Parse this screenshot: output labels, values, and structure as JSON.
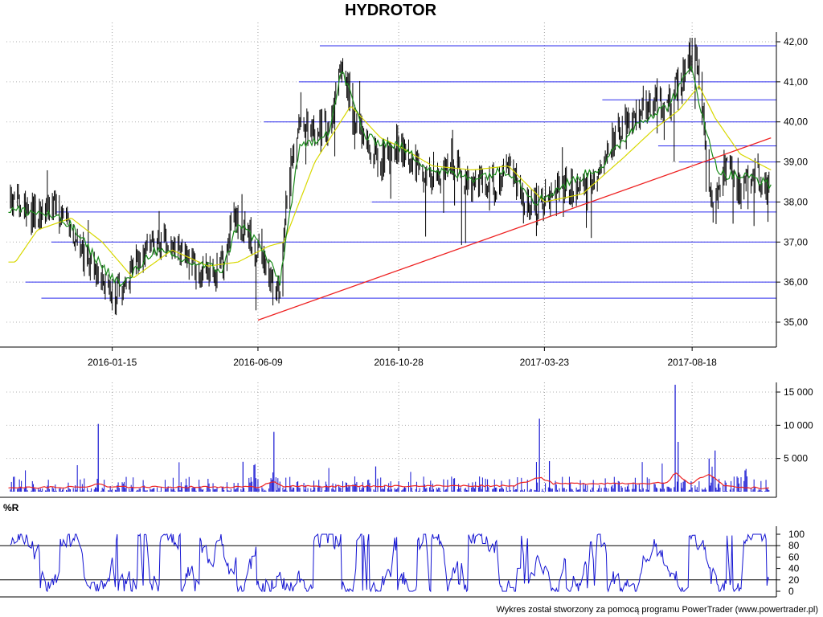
{
  "title": "HYDROTOR",
  "footer": "Wykres został stworzony za pomocą programu PowerTrader (www.powertrader.pl)",
  "colors": {
    "price_bars": "#000000",
    "fast_ma": "#1a8a1a",
    "slow_ma": "#d8d800",
    "levels": "#2a2aee",
    "trendline": "#ee2222",
    "volume_bars": "#1414d2",
    "volume_ma": "#ee2222",
    "williams_r": "#1414d2"
  },
  "chart_data": [
    {
      "type": "candlestick",
      "panel": "price",
      "title": "HYDROTOR",
      "x_ticks": [
        "2016-01-15",
        "2016-06-09",
        "2016-10-28",
        "2017-03-23",
        "2017-08-18"
      ],
      "y_ticks": [
        "35,00",
        "36,00",
        "37,00",
        "38,00",
        "39,00",
        "40,00",
        "41,00",
        "42,00"
      ],
      "ylim": [
        34.5,
        42.2
      ],
      "grid": true,
      "close_path": [
        [
          "2015-10-10",
          38.0
        ],
        [
          "2015-10-22",
          37.7
        ],
        [
          "2015-11-05",
          37.6
        ],
        [
          "2015-11-20",
          37.9
        ],
        [
          "2015-12-05",
          37.3
        ],
        [
          "2015-12-20",
          36.5
        ],
        [
          "2016-01-05",
          36.2
        ],
        [
          "2016-01-15",
          35.7
        ],
        [
          "2016-01-25",
          35.9
        ],
        [
          "2016-02-10",
          36.6
        ],
        [
          "2016-02-25",
          36.9
        ],
        [
          "2016-03-15",
          36.9
        ],
        [
          "2016-04-01",
          36.5
        ],
        [
          "2016-04-20",
          36.2
        ],
        [
          "2016-05-05",
          36.4
        ],
        [
          "2016-05-15",
          37.7
        ],
        [
          "2016-05-28",
          37.2
        ],
        [
          "2016-06-09",
          36.9
        ],
        [
          "2016-06-20",
          36.1
        ],
        [
          "2016-07-01",
          35.9
        ],
        [
          "2016-07-10",
          38.6
        ],
        [
          "2016-07-20",
          39.8
        ],
        [
          "2016-08-05",
          39.9
        ],
        [
          "2016-08-20",
          39.7
        ],
        [
          "2016-09-01",
          41.6
        ],
        [
          "2016-09-12",
          40.2
        ],
        [
          "2016-09-25",
          39.4
        ],
        [
          "2016-10-10",
          39.0
        ],
        [
          "2016-10-28",
          39.5
        ],
        [
          "2016-11-15",
          38.9
        ],
        [
          "2016-12-01",
          38.7
        ],
        [
          "2016-12-20",
          38.9
        ],
        [
          "2017-01-10",
          38.5
        ],
        [
          "2017-02-01",
          38.4
        ],
        [
          "2017-02-15",
          38.9
        ],
        [
          "2017-03-01",
          38.0
        ],
        [
          "2017-03-15",
          37.9
        ],
        [
          "2017-03-23",
          38.1
        ],
        [
          "2017-04-10",
          38.6
        ],
        [
          "2017-04-30",
          38.2
        ],
        [
          "2017-05-20",
          39.1
        ],
        [
          "2017-06-10",
          39.9
        ],
        [
          "2017-06-25",
          40.2
        ],
        [
          "2017-07-10",
          40.6
        ],
        [
          "2017-07-25",
          40.5
        ],
        [
          "2017-08-05",
          40.9
        ],
        [
          "2017-08-18",
          41.7
        ],
        [
          "2017-08-25",
          41.2
        ],
        [
          "2017-09-01",
          39.2
        ],
        [
          "2017-09-08",
          37.9
        ],
        [
          "2017-09-20",
          38.9
        ],
        [
          "2017-10-05",
          38.3
        ],
        [
          "2017-10-20",
          38.7
        ],
        [
          "2017-11-05",
          38.3
        ]
      ],
      "fast_ma_path": [
        [
          "2015-10-10",
          37.8
        ],
        [
          "2015-11-10",
          37.7
        ],
        [
          "2015-12-05",
          37.4
        ],
        [
          "2016-01-05",
          36.4
        ],
        [
          "2016-01-25",
          35.9
        ],
        [
          "2016-02-25",
          36.8
        ],
        [
          "2016-04-01",
          36.5
        ],
        [
          "2016-05-05",
          36.3
        ],
        [
          "2016-05-20",
          37.5
        ],
        [
          "2016-06-09",
          37.0
        ],
        [
          "2016-07-01",
          36.0
        ],
        [
          "2016-07-20",
          39.3
        ],
        [
          "2016-08-20",
          39.8
        ],
        [
          "2016-09-01",
          41.3
        ],
        [
          "2016-09-25",
          39.6
        ],
        [
          "2016-10-28",
          39.4
        ],
        [
          "2016-12-01",
          38.8
        ],
        [
          "2017-01-10",
          38.6
        ],
        [
          "2017-02-15",
          38.8
        ],
        [
          "2017-03-15",
          38.0
        ],
        [
          "2017-04-10",
          38.4
        ],
        [
          "2017-05-20",
          38.9
        ],
        [
          "2017-06-25",
          40.0
        ],
        [
          "2017-07-25",
          40.4
        ],
        [
          "2017-08-18",
          41.4
        ],
        [
          "2017-09-01",
          39.7
        ],
        [
          "2017-09-15",
          38.7
        ],
        [
          "2017-10-20",
          38.6
        ],
        [
          "2017-11-05",
          38.4
        ]
      ],
      "slow_ma_path": [
        [
          "2015-10-10",
          36.5
        ],
        [
          "2015-11-01",
          37.3
        ],
        [
          "2015-12-05",
          37.6
        ],
        [
          "2016-01-05",
          37.0
        ],
        [
          "2016-02-05",
          36.1
        ],
        [
          "2016-03-15",
          36.8
        ],
        [
          "2016-04-20",
          36.4
        ],
        [
          "2016-05-20",
          36.5
        ],
        [
          "2016-06-20",
          36.9
        ],
        [
          "2016-07-05",
          37.0
        ],
        [
          "2016-08-05",
          39.0
        ],
        [
          "2016-09-10",
          40.4
        ],
        [
          "2016-10-10",
          39.6
        ],
        [
          "2016-10-28",
          39.4
        ],
        [
          "2016-12-01",
          38.9
        ],
        [
          "2017-01-10",
          38.8
        ],
        [
          "2017-02-15",
          38.9
        ],
        [
          "2017-03-23",
          38.0
        ],
        [
          "2017-04-30",
          38.2
        ],
        [
          "2017-06-10",
          39.1
        ],
        [
          "2017-07-10",
          39.8
        ],
        [
          "2017-08-05",
          40.3
        ],
        [
          "2017-08-25",
          40.9
        ],
        [
          "2017-09-10",
          40.1
        ],
        [
          "2017-10-05",
          39.2
        ],
        [
          "2017-11-05",
          38.8
        ]
      ],
      "horizontal_levels": [
        {
          "y": 41.9,
          "from": "2016-08-10"
        },
        {
          "y": 41.0,
          "from": "2016-07-20"
        },
        {
          "y": 40.55,
          "from": "2017-05-20"
        },
        {
          "y": 40.0,
          "from": "2016-06-15"
        },
        {
          "y": 39.4,
          "from": "2017-07-15"
        },
        {
          "y": 39.0,
          "from": "2017-08-05"
        },
        {
          "y": 38.0,
          "from": "2016-10-01"
        },
        {
          "y": 37.75,
          "from": "2015-11-20"
        },
        {
          "y": 37.0,
          "from": "2015-11-15"
        },
        {
          "y": 36.0,
          "from": "2015-10-20"
        },
        {
          "y": 35.6,
          "from": "2015-11-05"
        }
      ],
      "trendline": {
        "from": [
          "2016-06-09",
          35.05
        ],
        "to": [
          "2017-11-05",
          39.6
        ]
      }
    },
    {
      "type": "bar",
      "panel": "volume",
      "y_ticks": [
        "5 000",
        "10 000",
        "15 000"
      ],
      "ylim": [
        0,
        17000
      ],
      "spikes": [
        [
          "2016-01-01",
          10200
        ],
        [
          "2016-06-25",
          9000
        ],
        [
          "2016-06-05",
          4000
        ],
        [
          "2016-05-25",
          4500
        ],
        [
          "2017-03-18",
          11000
        ],
        [
          "2017-03-28",
          4600
        ],
        [
          "2017-08-01",
          16100
        ],
        [
          "2017-08-04",
          7500
        ],
        [
          "2017-09-10",
          6200
        ],
        [
          "2017-09-04",
          5000
        ],
        [
          "2016-10-05",
          3800
        ],
        [
          "2017-10-10",
          3200
        ]
      ],
      "ma_path": [
        [
          "2015-10-10",
          600
        ],
        [
          "2015-12-20",
          700
        ],
        [
          "2016-01-01",
          1200
        ],
        [
          "2016-01-10",
          700
        ],
        [
          "2016-06-09",
          700
        ],
        [
          "2016-06-25",
          1600
        ],
        [
          "2016-07-05",
          800
        ],
        [
          "2017-02-20",
          900
        ],
        [
          "2017-03-18",
          2200
        ],
        [
          "2017-04-01",
          1200
        ],
        [
          "2017-07-25",
          1300
        ],
        [
          "2017-08-01",
          2900
        ],
        [
          "2017-08-15",
          1100
        ],
        [
          "2017-09-04",
          2700
        ],
        [
          "2017-09-20",
          800
        ],
        [
          "2017-11-05",
          500
        ]
      ]
    },
    {
      "type": "line",
      "panel": "williams_r",
      "label": "%R",
      "y_ticks": [
        "0",
        "20",
        "40",
        "60",
        "80",
        "100"
      ],
      "reference_lines": [
        20,
        80
      ],
      "ylim": [
        0,
        100
      ]
    }
  ]
}
